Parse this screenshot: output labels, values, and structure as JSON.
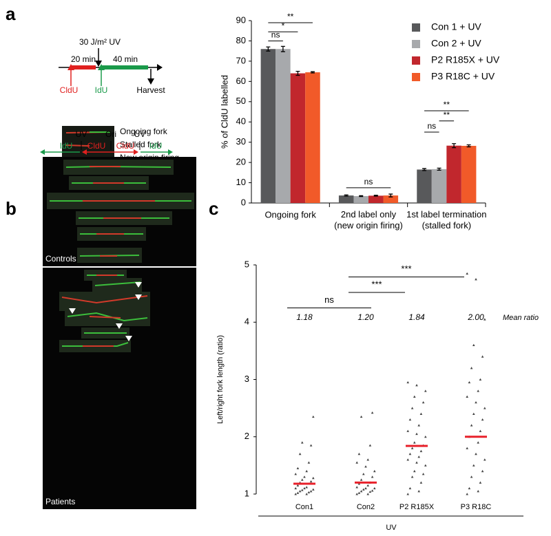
{
  "panels": [
    "a",
    "b",
    "c"
  ],
  "diagram_a": {
    "uv": "30 J/m² UV",
    "t1": "20 min",
    "t2": "40 min",
    "label1": "CldU",
    "label2": "IdU",
    "end": "Harvest",
    "legend": [
      "Ongoing fork",
      "Stalled fork",
      "New origin firing"
    ]
  },
  "panel_b": {
    "top": [
      "UV",
      "Ori",
      "UV"
    ],
    "labels": [
      "IdU",
      "CldU",
      "CldU",
      "IdU"
    ],
    "groups": [
      "Controls",
      "Patients"
    ]
  },
  "chart_data": [
    {
      "type": "bar",
      "ylabel": "% of CldU labelled",
      "categories": [
        "Ongoing fork",
        "2nd label only (new origin firing)",
        "1st label  termination (stalled fork)"
      ],
      "series": [
        {
          "name": "Con 1 + UV",
          "color": "#58595b",
          "values": [
            76,
            3.7,
            16.5
          ],
          "errors": [
            1,
            0.3,
            0.5
          ]
        },
        {
          "name": "Con 2 + UV",
          "color": "#a7a9ac",
          "values": [
            76,
            3.4,
            16.7
          ],
          "errors": [
            1.3,
            0.2,
            0.5
          ]
        },
        {
          "name": "P2 R185X + UV",
          "color": "#c1272d",
          "values": [
            64,
            3.6,
            28.3
          ],
          "errors": [
            1,
            0.2,
            1
          ]
        },
        {
          "name": "P3 R18C + UV",
          "color": "#f15a29",
          "values": [
            64.5,
            3.7,
            28.2
          ],
          "errors": [
            0.3,
            0.7,
            0.5
          ]
        }
      ],
      "ylim": [
        0,
        90
      ],
      "yticks": [
        0,
        10,
        20,
        30,
        40,
        50,
        60,
        70,
        80,
        90
      ],
      "significance": [
        {
          "label": "ns",
          "group": 0,
          "from": 0,
          "to": 1,
          "y": 80
        },
        {
          "label": "*",
          "group": 0,
          "from": 0,
          "to": 2,
          "y": 84.5
        },
        {
          "label": "**",
          "group": 0,
          "from": 0,
          "to": 3,
          "y": 89
        },
        {
          "label": "ns",
          "group": 1,
          "from": 0,
          "to": 3,
          "y": 7.5
        },
        {
          "label": "ns",
          "group": 2,
          "from": 0,
          "to": 1,
          "y": 35
        },
        {
          "label": "**",
          "group": 2,
          "from": 1,
          "to": 2,
          "y": 40.5
        },
        {
          "label": "**",
          "group": 2,
          "from": 0,
          "to": 3,
          "y": 45.5
        }
      ]
    },
    {
      "type": "scatter",
      "ylabel": "Left/right fork length (ratio)",
      "xlabel": "UV",
      "categories": [
        "Con1",
        "Con2",
        "P2 R185X",
        "P3 R18C"
      ],
      "means": [
        1.18,
        1.2,
        1.84,
        2.0
      ],
      "value_labels": [
        "1.18",
        "1.20",
        "1.84",
        "2.00"
      ],
      "mean_title": "Mean ratio",
      "mean_color": "#e8202a",
      "points": [
        [
          1.0,
          1.0,
          1.02,
          1.03,
          1.05,
          1.05,
          1.07,
          1.08,
          1.1,
          1.1,
          1.12,
          1.15,
          1.18,
          1.2,
          1.22,
          1.25,
          1.28,
          1.3,
          1.35,
          1.4,
          1.45,
          1.55,
          1.7,
          1.85,
          1.9,
          2.35
        ],
        [
          1.0,
          1.0,
          1.02,
          1.04,
          1.05,
          1.06,
          1.08,
          1.1,
          1.1,
          1.12,
          1.15,
          1.18,
          1.2,
          1.25,
          1.3,
          1.35,
          1.4,
          1.48,
          1.55,
          1.6,
          1.7,
          1.85,
          2.35,
          2.42
        ],
        [
          1.0,
          1.05,
          1.1,
          1.2,
          1.3,
          1.35,
          1.4,
          1.5,
          1.55,
          1.6,
          1.65,
          1.7,
          1.75,
          1.8,
          1.85,
          1.9,
          2.0,
          2.05,
          2.1,
          2.2,
          2.3,
          2.4,
          2.5,
          2.6,
          2.7,
          2.8,
          2.9,
          2.95
        ],
        [
          1.0,
          1.05,
          1.1,
          1.2,
          1.3,
          1.4,
          1.5,
          1.6,
          1.7,
          1.8,
          1.9,
          2.0,
          2.1,
          2.2,
          2.3,
          2.4,
          2.5,
          2.6,
          2.7,
          2.8,
          2.95,
          3.0,
          3.2,
          3.4,
          3.6,
          4.05,
          4.75,
          4.85
        ]
      ],
      "ylim": [
        1,
        5
      ],
      "yticks": [
        1,
        2,
        3,
        4,
        5
      ],
      "significance": [
        {
          "label": "ns",
          "from": 0,
          "to": 1,
          "y": 4.25
        },
        {
          "label": "***",
          "from": 1,
          "to": 2,
          "y": 4.52
        },
        {
          "label": "***",
          "from": 1,
          "to": 3,
          "y": 4.79
        }
      ]
    }
  ]
}
